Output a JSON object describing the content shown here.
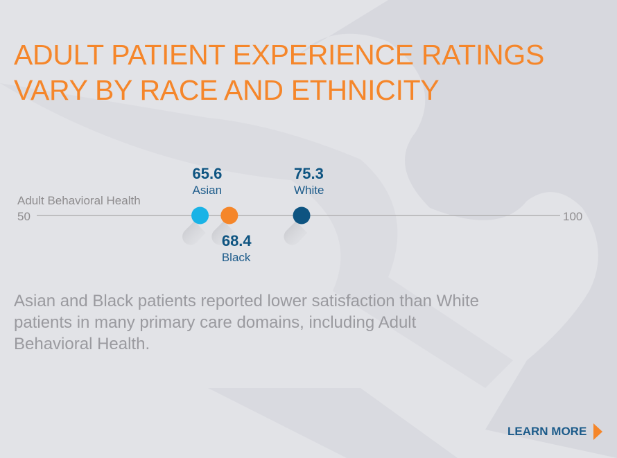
{
  "title_line1": "ADULT PATIENT EXPERIENCE RATINGS",
  "title_line2": "VARY BY RACE AND ETHNICITY",
  "description": "Asian and Black patients reported lower satisfaction than White patients in many primary care domains, including Adult Behavioral Health.",
  "learn_more": "LEARN MORE",
  "colors": {
    "accent": "#f5862a",
    "navy": "#0e5481",
    "sky": "#1ab3e6",
    "orange": "#f5862a"
  },
  "chart_data": {
    "type": "scatter",
    "title": "Adult Behavioral Health",
    "xlim": [
      50,
      100
    ],
    "tick_labels": [
      "50",
      "100"
    ],
    "points": [
      {
        "label": "Asian",
        "value": 65.6,
        "display": "65.6",
        "color": "#1ab3e6",
        "label_pos": "above"
      },
      {
        "label": "Black",
        "value": 68.4,
        "display": "68.4",
        "color": "#f5862a",
        "label_pos": "below"
      },
      {
        "label": "White",
        "value": 75.3,
        "display": "75.3",
        "color": "#0e5481",
        "label_pos": "above"
      }
    ]
  }
}
